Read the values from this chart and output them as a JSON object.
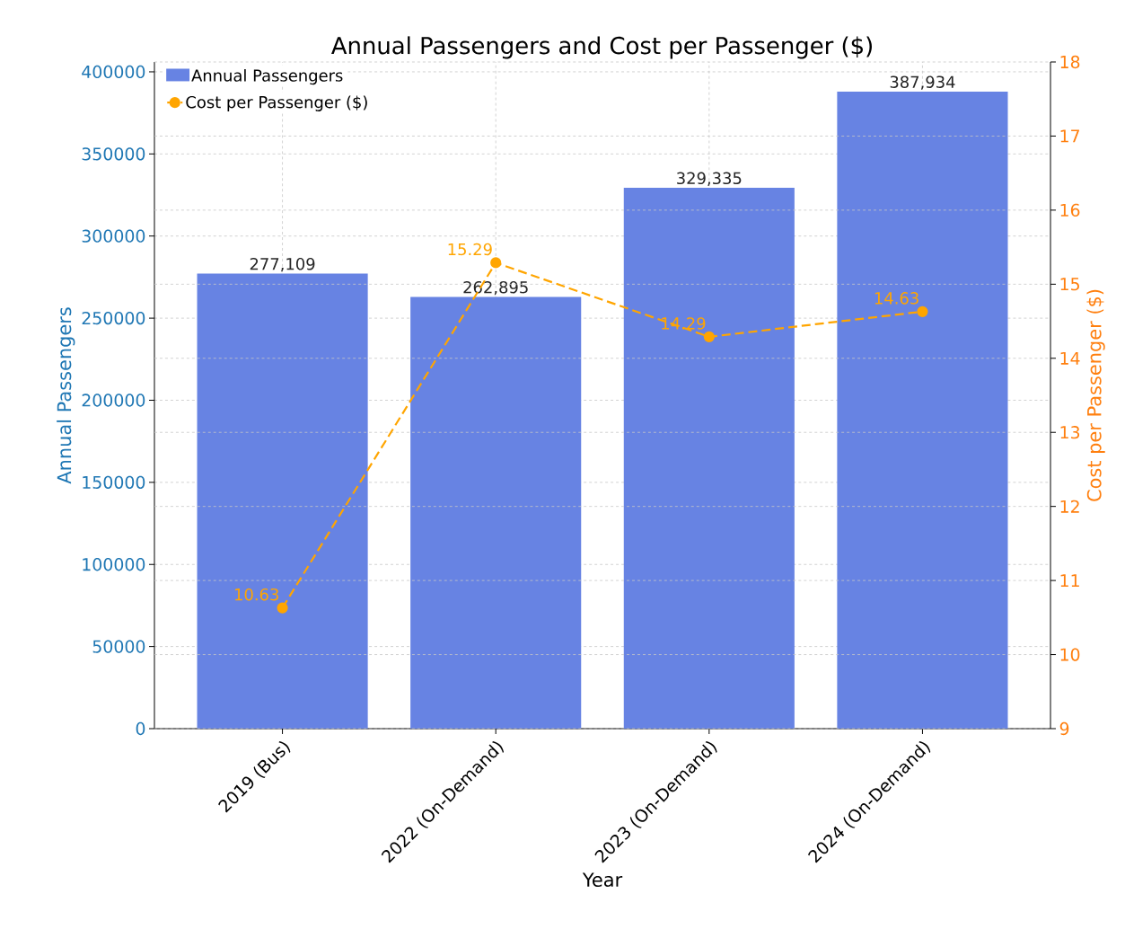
{
  "chart_data": {
    "type": "bar",
    "title": "Annual Passengers and Cost per Passenger ($)",
    "xlabel": "Year",
    "ylabel": "Annual Passengers",
    "y2label": "Cost per Passenger ($)",
    "categories": [
      "2019 (Bus)",
      "2022 (On-Demand)",
      "2023 (On-Demand)",
      "2024 (On-Demand)"
    ],
    "series": [
      {
        "name": "Annual Passengers",
        "color": "#6783e3",
        "values": [
          277109,
          262895,
          329335,
          387934
        ],
        "value_labels": [
          "277,109",
          "262,895",
          "329,335",
          "387,934"
        ]
      },
      {
        "name": "Cost per Passenger ($)",
        "type": "line",
        "axis": "y2",
        "color": "#ffa500",
        "values": [
          10.63,
          15.29,
          14.29,
          14.63
        ],
        "value_labels": [
          "10.63",
          "15.29",
          "14.29",
          "14.63"
        ],
        "marker": "circle",
        "line_style": "dashed"
      }
    ],
    "ylim": [
      0,
      406000
    ],
    "yticks": [
      0,
      50000,
      100000,
      150000,
      200000,
      250000,
      300000,
      350000,
      400000
    ],
    "y2lim": [
      9,
      18
    ],
    "y2ticks": [
      9,
      10,
      11,
      12,
      13,
      14,
      15,
      16,
      17,
      18
    ],
    "grid": true,
    "legend": "top left"
  }
}
